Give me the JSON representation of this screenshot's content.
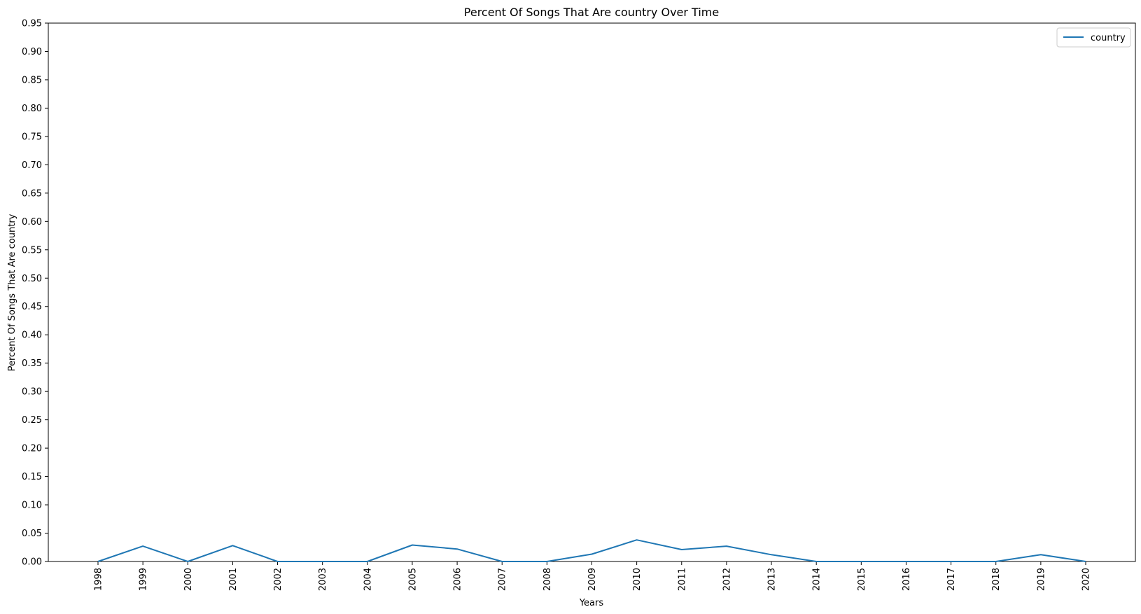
{
  "chart_data": {
    "type": "line",
    "title": "Percent Of Songs That Are country Over Time",
    "xlabel": "Years",
    "ylabel": "Percent Of Songs That Are country",
    "ylim": [
      0,
      0.95
    ],
    "yticks": [
      "0.00",
      "0.05",
      "0.10",
      "0.15",
      "0.20",
      "0.25",
      "0.30",
      "0.35",
      "0.40",
      "0.45",
      "0.50",
      "0.55",
      "0.60",
      "0.65",
      "0.70",
      "0.75",
      "0.80",
      "0.85",
      "0.90",
      "0.95"
    ],
    "categories": [
      "1998",
      "1999",
      "2000",
      "2001",
      "2002",
      "2003",
      "2004",
      "2005",
      "2006",
      "2007",
      "2008",
      "2009",
      "2010",
      "2011",
      "2012",
      "2013",
      "2014",
      "2015",
      "2016",
      "2017",
      "2018",
      "2019",
      "2020"
    ],
    "series": [
      {
        "name": "country",
        "color": "#1f77b4",
        "values": [
          0.0,
          0.027,
          0.0,
          0.028,
          0.0,
          0.0,
          0.0,
          0.029,
          0.022,
          0.0,
          0.0,
          0.013,
          0.038,
          0.021,
          0.027,
          0.012,
          0.0,
          0.0,
          0.0,
          0.0,
          0.0,
          0.012,
          0.0
        ]
      }
    ],
    "legend": "top-right",
    "grid": false
  }
}
